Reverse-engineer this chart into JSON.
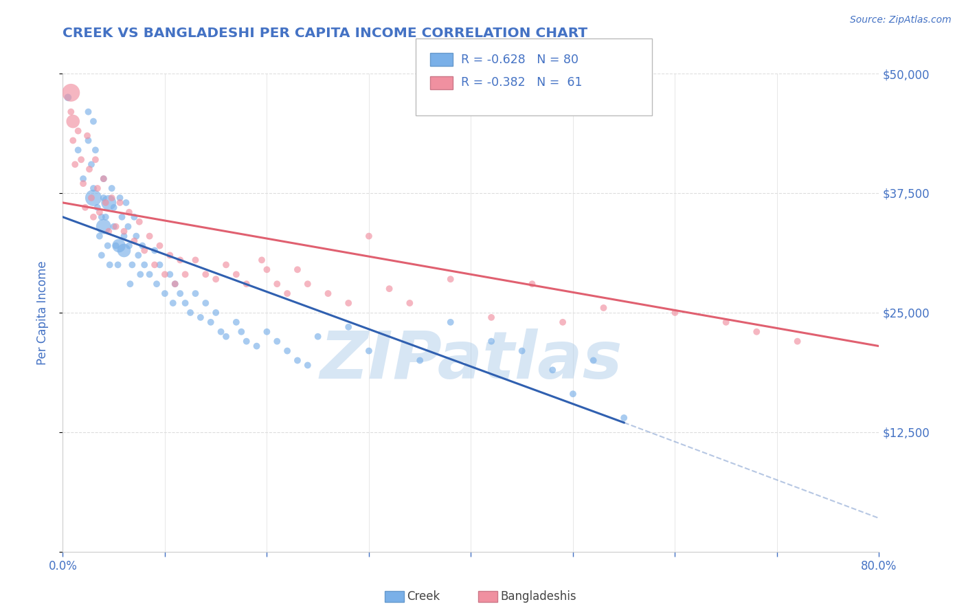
{
  "title": "CREEK VS BANGLADESHI PER CAPITA INCOME CORRELATION CHART",
  "source_text": "Source: ZipAtlas.com",
  "ylabel": "Per Capita Income",
  "xlim": [
    0.0,
    0.8
  ],
  "ylim": [
    0,
    50000
  ],
  "yticks": [
    0,
    12500,
    25000,
    37500,
    50000
  ],
  "ytick_labels": [
    "",
    "$12,500",
    "$25,000",
    "$37,500",
    "$50,000"
  ],
  "xtick_positions": [
    0.0,
    0.1,
    0.2,
    0.3,
    0.4,
    0.5,
    0.6,
    0.7,
    0.8
  ],
  "xtick_labels": [
    "0.0%",
    "",
    "",
    "",
    "",
    "",
    "",
    "",
    "80.0%"
  ],
  "title_color": "#4472c4",
  "axis_color": "#4472c4",
  "watermark": "ZIPatlas",
  "watermark_color": "#a8c8e8",
  "creek_color": "#7ab0e8",
  "bangladeshi_color": "#f090a0",
  "creek_line_color": "#3060b0",
  "bangladeshi_line_color": "#e06070",
  "grid_color": "#dddddd",
  "background_color": "#ffffff",
  "creek_line": [
    0.0,
    35000,
    0.55,
    13500
  ],
  "creek_line_ext": [
    0.55,
    13500,
    0.8,
    3500
  ],
  "bangladeshi_line": [
    0.0,
    36500,
    0.8,
    21500
  ],
  "creek_scatter_x": [
    0.005,
    0.015,
    0.02,
    0.025,
    0.025,
    0.028,
    0.03,
    0.03,
    0.032,
    0.034,
    0.036,
    0.038,
    0.038,
    0.04,
    0.04,
    0.042,
    0.044,
    0.046,
    0.048,
    0.05,
    0.05,
    0.052,
    0.054,
    0.056,
    0.058,
    0.06,
    0.062,
    0.064,
    0.065,
    0.066,
    0.068,
    0.07,
    0.072,
    0.074,
    0.076,
    0.078,
    0.08,
    0.085,
    0.09,
    0.092,
    0.095,
    0.1,
    0.105,
    0.108,
    0.11,
    0.115,
    0.12,
    0.125,
    0.13,
    0.135,
    0.14,
    0.145,
    0.15,
    0.155,
    0.16,
    0.17,
    0.175,
    0.18,
    0.19,
    0.2,
    0.21,
    0.22,
    0.23,
    0.24,
    0.25,
    0.28,
    0.3,
    0.35,
    0.38,
    0.42,
    0.45,
    0.48,
    0.5,
    0.52,
    0.55,
    0.03,
    0.04,
    0.045,
    0.055,
    0.06
  ],
  "creek_scatter_y": [
    47500,
    42000,
    39000,
    46000,
    43000,
    40500,
    45000,
    38000,
    42000,
    36000,
    33000,
    31000,
    35000,
    39000,
    37000,
    35000,
    32000,
    30000,
    38000,
    36000,
    34000,
    32000,
    30000,
    37000,
    35000,
    33000,
    36500,
    34000,
    32000,
    28000,
    30000,
    35000,
    33000,
    31000,
    29000,
    32000,
    30000,
    29000,
    31500,
    28000,
    30000,
    27000,
    29000,
    26000,
    28000,
    27000,
    26000,
    25000,
    27000,
    24500,
    26000,
    24000,
    25000,
    23000,
    22500,
    24000,
    23000,
    22000,
    21500,
    23000,
    22000,
    21000,
    20000,
    19500,
    22500,
    23500,
    21000,
    20000,
    24000,
    22000,
    21000,
    19000,
    16500,
    20000,
    14000,
    37000,
    34000,
    36500,
    32000,
    31500
  ],
  "creek_scatter_sizes": [
    60,
    50,
    50,
    50,
    50,
    50,
    50,
    50,
    50,
    50,
    50,
    50,
    50,
    50,
    50,
    50,
    50,
    50,
    50,
    50,
    50,
    50,
    50,
    50,
    50,
    50,
    50,
    50,
    50,
    50,
    50,
    50,
    50,
    50,
    50,
    50,
    50,
    50,
    50,
    50,
    50,
    50,
    50,
    50,
    50,
    50,
    50,
    50,
    50,
    50,
    50,
    50,
    50,
    50,
    50,
    50,
    50,
    50,
    50,
    50,
    50,
    50,
    50,
    50,
    50,
    50,
    50,
    50,
    50,
    50,
    50,
    50,
    50,
    50,
    50,
    300,
    250,
    250,
    200,
    200
  ],
  "bangladeshi_scatter_x": [
    0.008,
    0.01,
    0.012,
    0.015,
    0.018,
    0.02,
    0.022,
    0.024,
    0.026,
    0.028,
    0.03,
    0.032,
    0.034,
    0.036,
    0.04,
    0.042,
    0.045,
    0.048,
    0.052,
    0.056,
    0.06,
    0.065,
    0.07,
    0.075,
    0.08,
    0.085,
    0.09,
    0.095,
    0.1,
    0.105,
    0.11,
    0.115,
    0.12,
    0.13,
    0.14,
    0.15,
    0.16,
    0.17,
    0.18,
    0.195,
    0.2,
    0.21,
    0.22,
    0.23,
    0.24,
    0.26,
    0.28,
    0.3,
    0.32,
    0.34,
    0.38,
    0.42,
    0.46,
    0.49,
    0.53,
    0.6,
    0.65,
    0.68,
    0.72,
    0.008,
    0.01
  ],
  "bangladeshi_scatter_y": [
    46000,
    43000,
    40500,
    44000,
    41000,
    38500,
    36000,
    43500,
    40000,
    37000,
    35000,
    41000,
    38000,
    35500,
    39000,
    36500,
    33500,
    37000,
    34000,
    36500,
    33500,
    35500,
    32500,
    34500,
    31500,
    33000,
    30000,
    32000,
    29000,
    31000,
    28000,
    30500,
    29000,
    30500,
    29000,
    28500,
    30000,
    29000,
    28000,
    30500,
    29500,
    28000,
    27000,
    29500,
    28000,
    27000,
    26000,
    33000,
    27500,
    26000,
    28500,
    24500,
    28000,
    24000,
    25500,
    25000,
    24000,
    23000,
    22000,
    48000,
    45000
  ],
  "bangladeshi_scatter_sizes": [
    50,
    50,
    50,
    50,
    50,
    50,
    50,
    50,
    50,
    50,
    50,
    50,
    50,
    50,
    50,
    50,
    50,
    50,
    50,
    50,
    50,
    50,
    50,
    50,
    50,
    50,
    50,
    50,
    50,
    50,
    50,
    50,
    50,
    50,
    50,
    50,
    50,
    50,
    50,
    50,
    50,
    50,
    50,
    50,
    50,
    50,
    50,
    50,
    50,
    50,
    50,
    50,
    50,
    50,
    50,
    50,
    50,
    50,
    50,
    350,
    200
  ]
}
